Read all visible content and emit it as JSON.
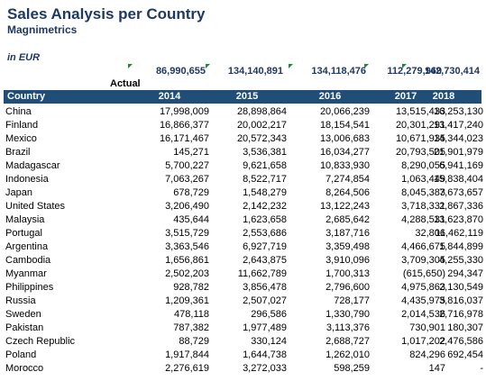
{
  "report": {
    "title": "Sales Analysis per Country",
    "subtitle": "Magnimetrics",
    "unit": "in EUR",
    "scenario": "Actual"
  },
  "totals": [
    "86,990,655",
    "134,140,891",
    "134,118,476",
    "112,279,969",
    "142,730,414"
  ],
  "table": {
    "headers": [
      "Country",
      "2014",
      "2015",
      "2016",
      "2017",
      "2018"
    ],
    "rows": [
      [
        "China",
        "17,998,009",
        "28,898,864",
        "20,066,239",
        "13,515,433",
        "16,253,130"
      ],
      [
        "Finland",
        "16,866,377",
        "20,002,217",
        "18,154,541",
        "20,301,291",
        "13,417,240"
      ],
      [
        "Mexico",
        "16,171,467",
        "20,572,343",
        "13,006,683",
        "10,671,935",
        "14,344,023"
      ],
      [
        "Brazil",
        "145,271",
        "3,536,381",
        "16,034,277",
        "20,793,505",
        "21,901,979"
      ],
      [
        "Madagascar",
        "5,700,227",
        "9,621,658",
        "10,833,930",
        "8,290,055",
        "6,941,169"
      ],
      [
        "Indonesia",
        "7,063,267",
        "8,522,717",
        "7,274,854",
        "1,063,449",
        "15,838,404"
      ],
      [
        "Japan",
        "678,729",
        "1,548,279",
        "8,264,506",
        "8,045,383",
        "7,673,657"
      ],
      [
        "United States",
        "3,206,490",
        "2,142,232",
        "13,122,243",
        "3,718,331",
        "2,867,336"
      ],
      [
        "Malaysia",
        "435,644",
        "1,623,658",
        "2,685,642",
        "4,288,531",
        "13,623,870"
      ],
      [
        "Portugal",
        "3,515,729",
        "2,553,686",
        "3,187,716",
        "32,806",
        "11,462,119"
      ],
      [
        "Argentina",
        "3,363,546",
        "6,927,719",
        "3,359,498",
        "4,466,675",
        "1,844,899"
      ],
      [
        "Cambodia",
        "1,656,861",
        "2,643,875",
        "3,910,096",
        "3,709,305",
        "4,255,330"
      ],
      [
        "Myanmar",
        "2,502,203",
        "11,662,789",
        "1,700,313",
        "(615,650)",
        "294,347"
      ],
      [
        "Philippines",
        "928,782",
        "3,856,478",
        "2,796,600",
        "4,975,863",
        "2,130,549"
      ],
      [
        "Russia",
        "1,209,361",
        "2,507,027",
        "728,177",
        "4,435,975",
        "3,816,037"
      ],
      [
        "Sweden",
        "478,118",
        "296,586",
        "1,330,790",
        "2,014,536",
        "2,716,978"
      ],
      [
        "Pakistan",
        "787,382",
        "1,977,489",
        "3,113,376",
        "730,901",
        "180,307"
      ],
      [
        "Czech Republic",
        "88,729",
        "330,124",
        "2,688,727",
        "1,017,202",
        "2,476,586"
      ],
      [
        "Poland",
        "1,917,844",
        "1,644,738",
        "1,262,010",
        "824,296",
        "692,454"
      ],
      [
        "Morocco",
        "2,276,619",
        "3,272,033",
        "598,259",
        "147",
        "-"
      ]
    ]
  }
}
